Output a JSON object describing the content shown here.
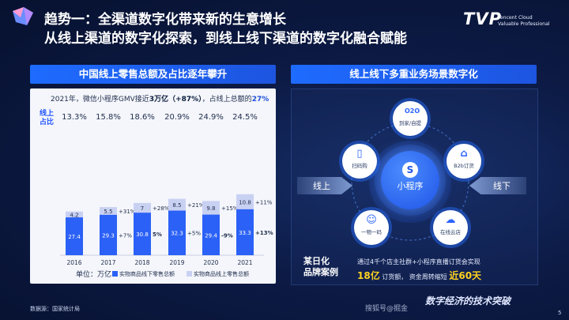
{
  "header": {
    "title_line1": "趋势一：全渠道数字化带来新的生意增长",
    "title_line2": "从线上渠道的数字化探索，到线上线下渠道的数字化融合赋能",
    "brand": {
      "mark": "TVP",
      "line1": "Tencent Cloud",
      "line2": "Valuable Professional"
    }
  },
  "left": {
    "heading": "中国线上零售总额及占比逐年攀升",
    "note_prefix": "2021年，微信小程序GMV接近",
    "note_value": "3万亿",
    "note_growth": "（+87%）",
    "note_suffix": "，占线上总额的",
    "note_share": "27%",
    "ratio_label_1": "线上",
    "ratio_label_2": "占比",
    "unit": "单位：万亿",
    "legend_offline": "实物商品线下零售总额",
    "legend_online": "实物商品线上零售总额",
    "colors": {
      "offline": "#2b61f6",
      "online": "#c9d1f3"
    }
  },
  "chart_data": {
    "type": "bar",
    "stacked": true,
    "categories": [
      "2016",
      "2017",
      "2018",
      "2019",
      "2020",
      "2021"
    ],
    "series": [
      {
        "name": "实物商品线下零售总额",
        "values": [
          27.4,
          29.3,
          30.8,
          32.3,
          29.4,
          33.3
        ],
        "growth": [
          "",
          "+7%",
          "5%",
          "+5%",
          "-9%",
          "+13%"
        ]
      },
      {
        "name": "实物商品线上零售总额",
        "values": [
          4.2,
          5.5,
          7.0,
          8.5,
          9.8,
          10.8
        ],
        "growth": [
          "",
          "+31%",
          "+28%",
          "+21%",
          "+15%",
          "+11%"
        ]
      }
    ],
    "online_share": [
      "13.3%",
      "15.8%",
      "18.6%",
      "20.9%",
      "24.9%",
      "24.5%"
    ]
  },
  "right": {
    "heading": "线上线下多重业务场景数字化",
    "hub_label": "小程序",
    "arrow_left": "线上",
    "arrow_right": "线下",
    "nodes": [
      {
        "label_top": "O2O",
        "label": "到家/自提",
        "icon": "o2o-icon"
      },
      {
        "label": "B2b订货",
        "icon": "store-icon"
      },
      {
        "label": "扫码购",
        "icon": "phone-scan-icon"
      },
      {
        "label": "一物一码",
        "icon": "people-icon"
      },
      {
        "label": "在线云店",
        "icon": "cloud-store-icon"
      }
    ],
    "case_title_1": "某日化",
    "case_title_2": "品牌案例",
    "case_text_1": "通过4千个店主社群+小程序直播订货会实现",
    "case_value_1": "18亿",
    "case_text_2": "订货额，  资金周转缩短",
    "case_value_2": "近60天"
  },
  "footer": {
    "source": "数据源：国家统计局",
    "brand": "数字经济的技术突破",
    "watermark": "搜狐号@掘金",
    "page": "5"
  }
}
